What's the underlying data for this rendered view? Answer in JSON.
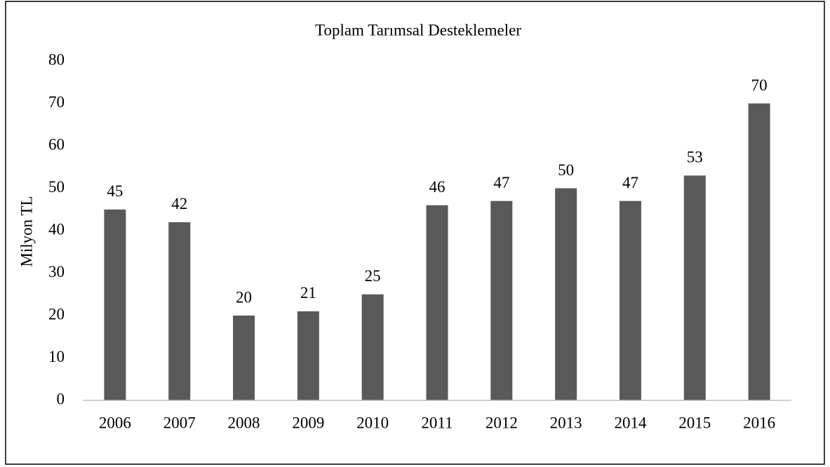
{
  "chart_data": {
    "type": "bar",
    "title": "Toplam Tarımsal Desteklemeler",
    "y_label": "Milyon TL",
    "categories": [
      "2006",
      "2007",
      "2008",
      "2009",
      "2010",
      "2011",
      "2012",
      "2013",
      "2014",
      "2015",
      "2016"
    ],
    "values": [
      45,
      42,
      20,
      21,
      25,
      46,
      47,
      50,
      47,
      53,
      70
    ],
    "color": "#595959",
    "ylim": [
      0,
      80
    ],
    "yticks": [
      0,
      10,
      20,
      30,
      40,
      50,
      60,
      70,
      80
    ],
    "grid": false
  }
}
